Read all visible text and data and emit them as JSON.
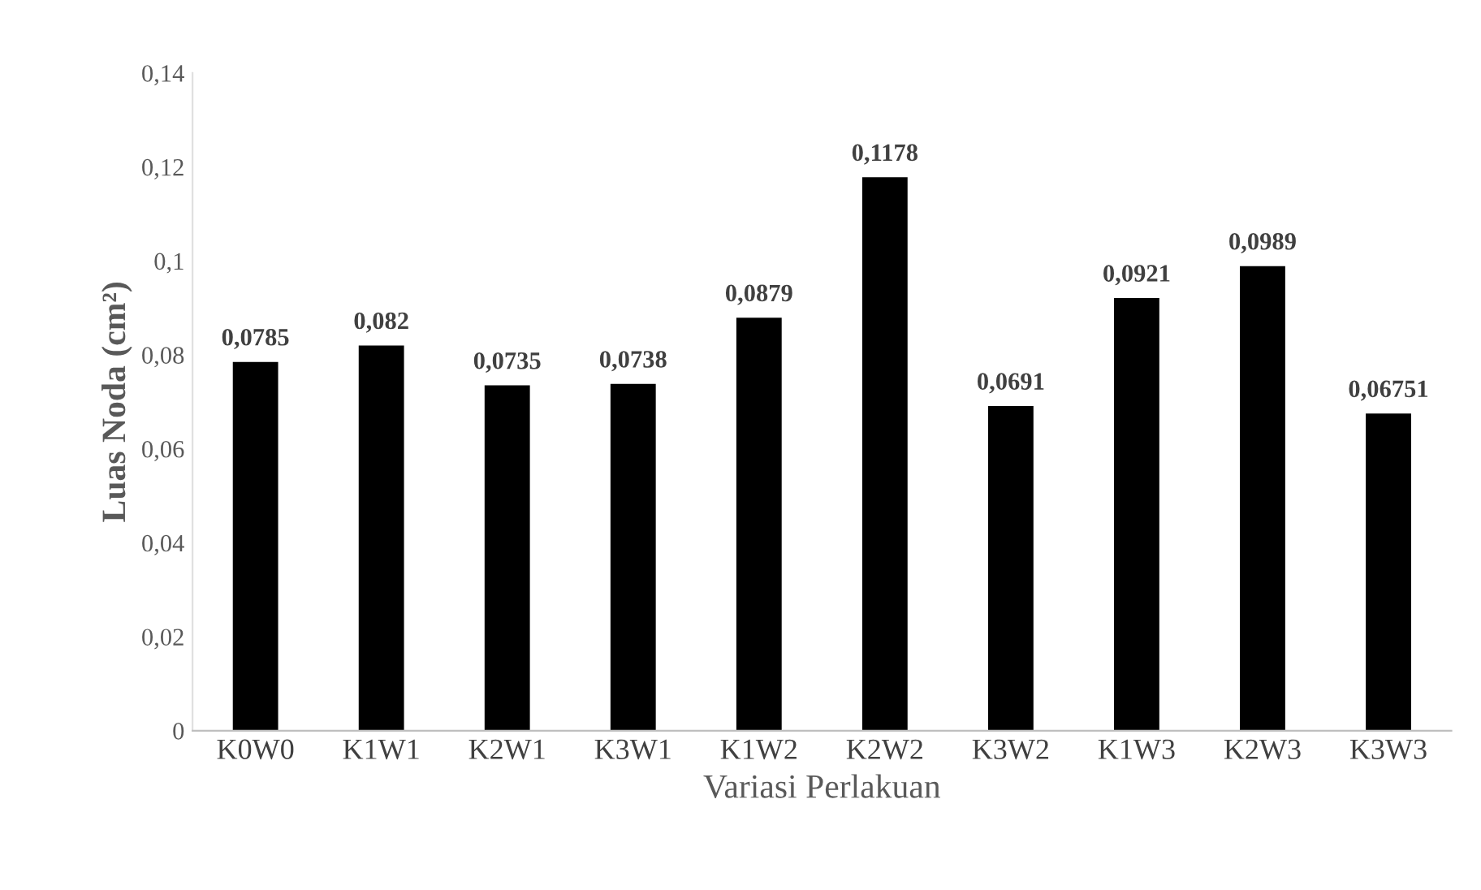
{
  "chart_data": {
    "type": "bar",
    "xlabel": "Variasi Perlakuan",
    "ylabel": "Luas Noda (cm²)",
    "categories": [
      "K0W0",
      "K1W1",
      "K2W1",
      "K3W1",
      "K1W2",
      "K2W2",
      "K3W2",
      "K1W3",
      "K2W3",
      "K3W3"
    ],
    "values": [
      0.0785,
      0.082,
      0.0735,
      0.0738,
      0.0879,
      0.1178,
      0.0691,
      0.0921,
      0.0989,
      0.06751
    ],
    "value_labels": [
      "0,0785",
      "0,082",
      "0,0735",
      "0,0738",
      "0,0879",
      "0,1178",
      "0,0691",
      "0,0921",
      "0,0989",
      "0,06751"
    ],
    "color": "#000000",
    "ylim": [
      0,
      0.14
    ],
    "yticks": [
      0,
      {
        "value": 0.02,
        "label": "0,02"
      },
      {
        "value": 0.04,
        "label": "0,04"
      },
      {
        "value": 0.06,
        "label": "0,06"
      },
      {
        "value": 0.08,
        "label": "0,08"
      },
      {
        "value": 0.1,
        "label": "0,1"
      },
      {
        "value": 0.12,
        "label": "0,12"
      },
      {
        "value": 0.14,
        "label": "0,14"
      }
    ],
    "grid": false,
    "legend": false
  }
}
